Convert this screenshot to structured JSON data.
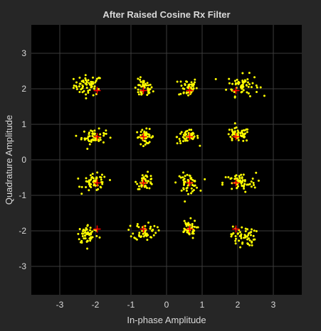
{
  "chart_data": {
    "type": "scatter",
    "title": "After Raised Cosine Rx Filter",
    "xlabel": "In-phase Amplitude",
    "ylabel": "Quadrature Amplitude",
    "xlim": [
      -3.8,
      3.8
    ],
    "ylim": [
      -3.8,
      3.8
    ],
    "xticks": [
      -3,
      -2,
      -1,
      0,
      1,
      2,
      3
    ],
    "yticks": [
      -3,
      -2,
      -1,
      0,
      1,
      2,
      3
    ],
    "grid": true,
    "background_color": "#000000",
    "figure_color": "#262626",
    "series": [
      {
        "role": "received-samples",
        "color": "#ffff00",
        "clusters": [
          {
            "center": [
              -2.2,
              2.1
            ],
            "spread": [
              0.2,
              0.14
            ],
            "count": 60
          },
          {
            "center": [
              -0.65,
              2.0
            ],
            "spread": [
              0.13,
              0.13
            ],
            "count": 45
          },
          {
            "center": [
              0.6,
              2.05
            ],
            "spread": [
              0.13,
              0.14
            ],
            "count": 45
          },
          {
            "center": [
              2.15,
              2.1
            ],
            "spread": [
              0.22,
              0.15
            ],
            "count": 60
          },
          {
            "center": [
              -2.05,
              0.65
            ],
            "spread": [
              0.17,
              0.1
            ],
            "count": 55
          },
          {
            "center": [
              -0.6,
              0.65
            ],
            "spread": [
              0.13,
              0.1
            ],
            "count": 45
          },
          {
            "center": [
              0.6,
              0.65
            ],
            "spread": [
              0.15,
              0.1
            ],
            "count": 50
          },
          {
            "center": [
              2.0,
              0.7
            ],
            "spread": [
              0.17,
              0.1
            ],
            "count": 55
          },
          {
            "center": [
              -2.0,
              -0.65
            ],
            "spread": [
              0.17,
              0.12
            ],
            "count": 55
          },
          {
            "center": [
              -0.6,
              -0.6
            ],
            "spread": [
              0.12,
              0.11
            ],
            "count": 45
          },
          {
            "center": [
              0.6,
              -0.65
            ],
            "spread": [
              0.15,
              0.13
            ],
            "count": 50
          },
          {
            "center": [
              2.05,
              -0.65
            ],
            "spread": [
              0.23,
              0.14
            ],
            "count": 60
          },
          {
            "center": [
              -2.2,
              -2.1
            ],
            "spread": [
              0.15,
              0.14
            ],
            "count": 55
          },
          {
            "center": [
              -0.6,
              -2.0
            ],
            "spread": [
              0.16,
              0.13
            ],
            "count": 50
          },
          {
            "center": [
              0.6,
              -1.95
            ],
            "spread": [
              0.12,
              0.13
            ],
            "count": 45
          },
          {
            "center": [
              2.15,
              -2.15
            ],
            "spread": [
              0.17,
              0.14
            ],
            "count": 55
          }
        ]
      },
      {
        "role": "reference-constellation",
        "color": "#ff0000",
        "marker": "+",
        "points": [
          [
            -1.95,
            1.95
          ],
          [
            -0.65,
            1.95
          ],
          [
            0.65,
            1.95
          ],
          [
            1.95,
            1.95
          ],
          [
            -1.95,
            0.65
          ],
          [
            -0.65,
            0.65
          ],
          [
            0.65,
            0.65
          ],
          [
            1.95,
            0.65
          ],
          [
            -1.95,
            -0.65
          ],
          [
            -0.65,
            -0.65
          ],
          [
            0.65,
            -0.65
          ],
          [
            1.95,
            -0.65
          ],
          [
            -1.95,
            -1.95
          ],
          [
            -0.65,
            -1.95
          ],
          [
            0.65,
            -1.95
          ],
          [
            1.95,
            -1.95
          ]
        ]
      }
    ]
  }
}
